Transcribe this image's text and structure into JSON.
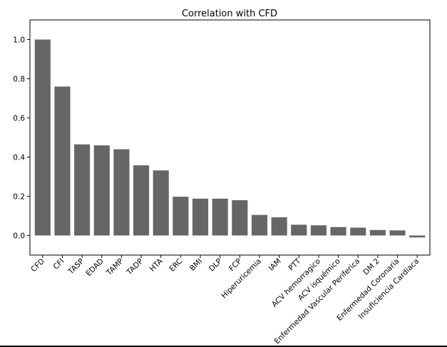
{
  "chart_data": {
    "type": "bar",
    "title": "Correlation with CFD",
    "xlabel": "",
    "ylabel": "",
    "ylim": [
      -0.1,
      1.1
    ],
    "yticks": [
      0.0,
      0.2,
      0.4,
      0.6,
      0.8,
      1.0
    ],
    "ytick_labels": [
      "0.0",
      "0.2",
      "0.4",
      "0.6",
      "0.8",
      "1.0"
    ],
    "grid": false,
    "bar_color": "#666666",
    "categories": [
      "CFD",
      "CFI",
      "TASP",
      "EDAD",
      "TAMP",
      "TADP",
      "HTA",
      "ERC",
      "BMI",
      "DLP",
      "FCP",
      "Hiperuricemia",
      "IAM",
      "PTT",
      "ACV hemorragico",
      "ACV isquémico",
      "Enfermedad Vascular Periferica",
      "DM 2",
      "Enfermedad Coronaria",
      "Insuficiencia Cardiaca"
    ],
    "values": [
      1.0,
      0.76,
      0.465,
      0.46,
      0.44,
      0.358,
      0.332,
      0.198,
      0.188,
      0.188,
      0.18,
      0.105,
      0.093,
      0.055,
      0.052,
      0.043,
      0.04,
      0.028,
      0.026,
      -0.01
    ]
  }
}
